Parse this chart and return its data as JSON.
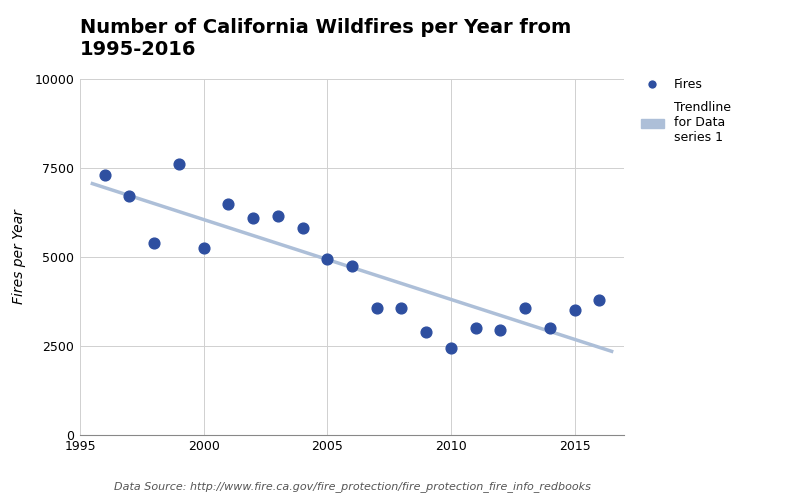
{
  "title": "Number of California Wildfires per Year from\n1995-2016",
  "xlabel": "",
  "ylabel": "Fires per Year",
  "source_text": "Data Source: http://www.fire.ca.gov/fire_protection/fire_protection_fire_info_redbooks",
  "years": [
    1996,
    1997,
    1998,
    1999,
    2000,
    2001,
    2002,
    2003,
    2004,
    2005,
    2006,
    2007,
    2008,
    2009,
    2010,
    2011,
    2012,
    2013,
    2014,
    2015,
    2016
  ],
  "fires": [
    7300,
    6700,
    5400,
    7600,
    5250,
    6500,
    6100,
    6150,
    5800,
    4950,
    4750,
    3550,
    3550,
    2900,
    2450,
    3000,
    2950,
    3550,
    3000,
    3500,
    3800
  ],
  "dot_color": "#2e4fa0",
  "trendline_color": "#adbfd8",
  "background_color": "#ffffff",
  "ylim": [
    0,
    10000
  ],
  "xlim": [
    1995,
    2017
  ],
  "yticks": [
    0,
    2500,
    5000,
    7500,
    10000
  ],
  "xticks": [
    1995,
    2000,
    2005,
    2010,
    2015
  ],
  "grid_color": "#d0d0d0",
  "dot_size": 60,
  "legend_fires_label": "Fires",
  "legend_trend_label": "Trendline\nfor Data\nseries 1",
  "title_fontsize": 14,
  "label_fontsize": 10,
  "tick_fontsize": 9,
  "source_fontsize": 8
}
